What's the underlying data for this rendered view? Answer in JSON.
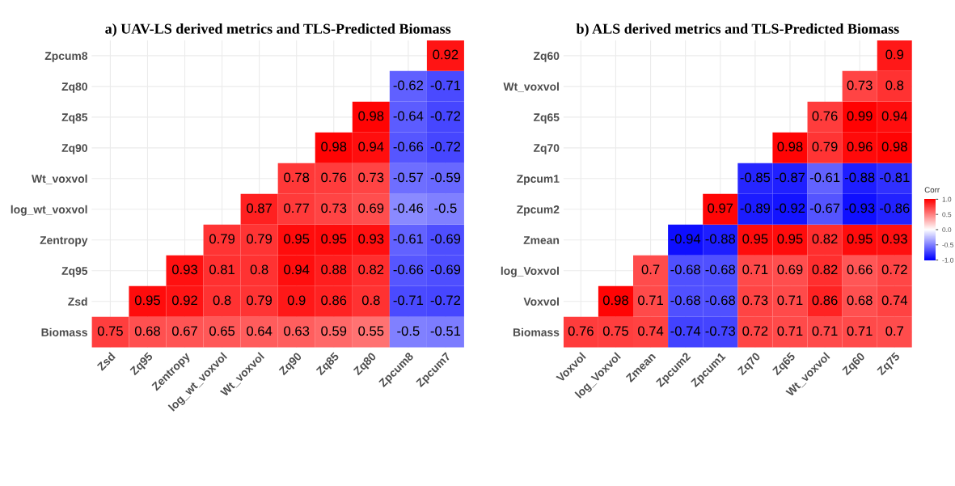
{
  "chart_data": [
    {
      "type": "heatmap",
      "title": "a) UAV-LS derived metrics and TLS-Predicted Biomass",
      "grid": true,
      "data_labels": true,
      "categories": [
        "Zsd",
        "Zq95",
        "Zentropy",
        "log_wt_voxvol",
        "Wt_voxvol",
        "Zq90",
        "Zq85",
        "Zq80",
        "Zpcum8",
        "Zpcum7"
      ],
      "y_categories": [
        "Zpcum8",
        "Zq80",
        "Zq85",
        "Zq90",
        "Wt_voxvol",
        "log_wt_voxvol",
        "Zentropy",
        "Zq95",
        "Zsd",
        "Biomass"
      ],
      "cells": [
        [
          null,
          null,
          null,
          null,
          null,
          null,
          null,
          null,
          null,
          0.92
        ],
        [
          null,
          null,
          null,
          null,
          null,
          null,
          null,
          null,
          -0.62,
          -0.71
        ],
        [
          null,
          null,
          null,
          null,
          null,
          null,
          null,
          0.98,
          -0.64,
          -0.72
        ],
        [
          null,
          null,
          null,
          null,
          null,
          null,
          0.98,
          0.94,
          -0.66,
          -0.72
        ],
        [
          null,
          null,
          null,
          null,
          null,
          0.78,
          0.76,
          0.73,
          -0.57,
          -0.59
        ],
        [
          null,
          null,
          null,
          null,
          0.87,
          0.77,
          0.73,
          0.69,
          -0.46,
          -0.5
        ],
        [
          null,
          null,
          null,
          0.79,
          0.79,
          0.95,
          0.95,
          0.93,
          -0.61,
          -0.69
        ],
        [
          null,
          null,
          0.93,
          0.81,
          0.8,
          0.94,
          0.88,
          0.82,
          -0.66,
          -0.69
        ],
        [
          null,
          0.95,
          0.92,
          0.8,
          0.79,
          0.9,
          0.86,
          0.8,
          -0.71,
          -0.72
        ],
        [
          0.75,
          0.68,
          0.67,
          0.65,
          0.64,
          0.63,
          0.59,
          0.55,
          -0.5,
          -0.51
        ]
      ]
    },
    {
      "type": "heatmap",
      "title": "b) ALS derived metrics and TLS-Predicted Biomass",
      "grid": true,
      "data_labels": true,
      "clabel": "Corr",
      "clim": [
        -1,
        1
      ],
      "cticks": [
        {
          "value": -1,
          "label": "-1.0"
        },
        {
          "value": -0.5,
          "label": "-0.5"
        },
        {
          "value": 0,
          "label": "0.0"
        },
        {
          "value": 0.5,
          "label": "0.5"
        },
        {
          "value": 1,
          "label": "1.0"
        }
      ],
      "categories": [
        "Voxvol",
        "log_Voxvol",
        "Zmean",
        "Zpcum2",
        "Zpcum1",
        "Zq70",
        "Zq65",
        "Wt_voxvol",
        "Zq60",
        "Zq75"
      ],
      "y_categories": [
        "Zq60",
        "Wt_voxvol",
        "Zq65",
        "Zq70",
        "Zpcum1",
        "Zpcum2",
        "Zmean",
        "log_Voxvol",
        "Voxvol",
        "Biomass"
      ],
      "cells": [
        [
          null,
          null,
          null,
          null,
          null,
          null,
          null,
          null,
          null,
          0.9
        ],
        [
          null,
          null,
          null,
          null,
          null,
          null,
          null,
          null,
          0.73,
          0.8
        ],
        [
          null,
          null,
          null,
          null,
          null,
          null,
          null,
          0.76,
          0.99,
          0.94
        ],
        [
          null,
          null,
          null,
          null,
          null,
          null,
          0.98,
          0.79,
          0.96,
          0.98
        ],
        [
          null,
          null,
          null,
          null,
          null,
          -0.85,
          -0.87,
          -0.61,
          -0.88,
          -0.81
        ],
        [
          null,
          null,
          null,
          null,
          0.97,
          -0.89,
          -0.92,
          -0.67,
          -0.93,
          -0.86
        ],
        [
          null,
          null,
          null,
          -0.94,
          -0.88,
          0.95,
          0.95,
          0.82,
          0.95,
          0.93
        ],
        [
          null,
          null,
          0.7,
          -0.68,
          -0.68,
          0.71,
          0.69,
          0.82,
          0.66,
          0.72
        ],
        [
          null,
          0.98,
          0.71,
          -0.68,
          -0.68,
          0.73,
          0.71,
          0.86,
          0.68,
          0.74
        ],
        [
          0.76,
          0.75,
          0.74,
          -0.74,
          -0.73,
          0.72,
          0.71,
          0.71,
          0.71,
          0.7
        ]
      ]
    }
  ]
}
